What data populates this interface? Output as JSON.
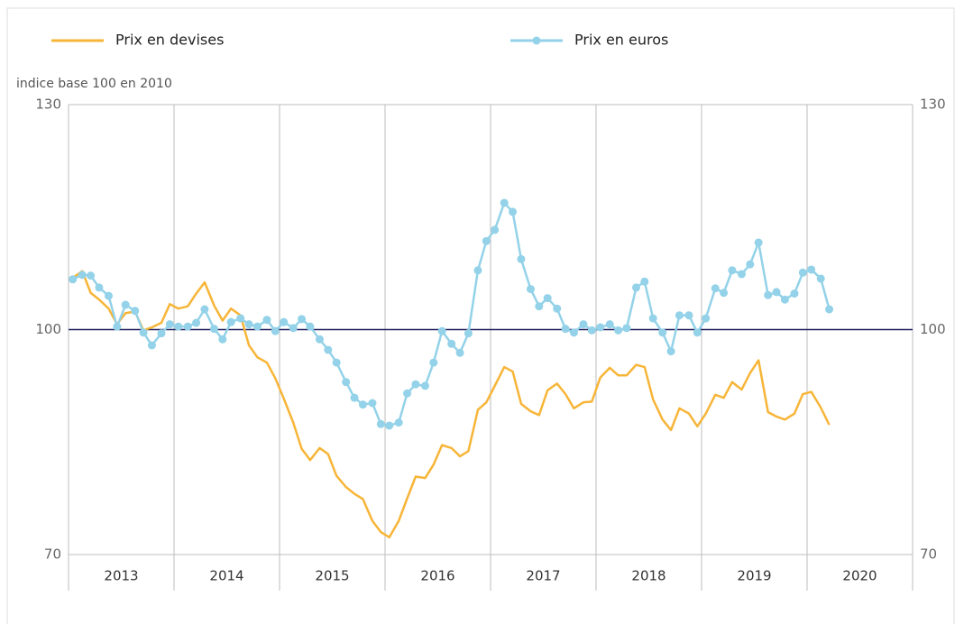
{
  "chart_data": {
    "type": "line",
    "ylabel": "indice base 100 en 2010",
    "categories": [
      "2013",
      "2014",
      "2015",
      "2016",
      "2017",
      "2018",
      "2019",
      "2020"
    ],
    "x": [
      2013.04,
      2013.13,
      2013.21,
      2013.29,
      2013.38,
      2013.46,
      2013.54,
      2013.63,
      2013.71,
      2013.79,
      2013.88,
      2013.96,
      2014.04,
      2014.13,
      2014.21,
      2014.29,
      2014.38,
      2014.46,
      2014.54,
      2014.63,
      2014.71,
      2014.79,
      2014.88,
      2014.96,
      2015.04,
      2015.13,
      2015.21,
      2015.29,
      2015.38,
      2015.46,
      2015.54,
      2015.63,
      2015.71,
      2015.79,
      2015.88,
      2015.96,
      2016.04,
      2016.13,
      2016.21,
      2016.29,
      2016.38,
      2016.46,
      2016.54,
      2016.63,
      2016.71,
      2016.79,
      2016.88,
      2016.96,
      2017.04,
      2017.13,
      2017.21,
      2017.29,
      2017.38,
      2017.46,
      2017.54,
      2017.63,
      2017.71,
      2017.79,
      2017.88,
      2017.96,
      2018.04,
      2018.13,
      2018.21,
      2018.29,
      2018.38,
      2018.46,
      2018.54,
      2018.63,
      2018.71,
      2018.79,
      2018.88,
      2018.96,
      2019.04,
      2019.13,
      2019.21,
      2019.29,
      2019.38,
      2019.46,
      2019.54,
      2019.63,
      2019.71,
      2019.79,
      2019.88,
      2019.96,
      2020.04,
      2020.13,
      2020.21
    ],
    "xlim": [
      2013,
      2021
    ],
    "series": [
      {
        "name": "Prix en devises",
        "color": "#f7b538",
        "marker": false,
        "values": [
          106.9,
          107.8,
          104.9,
          104.0,
          102.8,
          100.7,
          102.2,
          102.4,
          99.9,
          100.3,
          100.9,
          103.4,
          102.8,
          103.1,
          104.8,
          106.3,
          103.2,
          101.2,
          102.8,
          101.9,
          97.9,
          96.3,
          95.6,
          93.5,
          90.8,
          87.6,
          84.1,
          82.6,
          84.2,
          83.4,
          80.5,
          79.0,
          78.1,
          77.4,
          74.5,
          73.0,
          72.3,
          74.5,
          77.5,
          80.4,
          80.2,
          82.0,
          84.6,
          84.2,
          83.1,
          83.8,
          89.3,
          90.3,
          92.5,
          95.0,
          94.4,
          90.1,
          89.1,
          88.6,
          91.9,
          92.8,
          91.4,
          89.5,
          90.3,
          90.4,
          93.6,
          94.9,
          93.9,
          93.9,
          95.3,
          95.0,
          90.7,
          88.0,
          86.6,
          89.5,
          88.8,
          87.1,
          88.8,
          91.3,
          90.9,
          93.0,
          92.0,
          94.2,
          95.9,
          89.0,
          88.4,
          88.0,
          88.8,
          91.4,
          91.7,
          89.6,
          87.3
        ]
      },
      {
        "name": "Prix en euros",
        "color": "#93d2e8",
        "marker": true,
        "values": [
          106.7,
          107.3,
          107.2,
          105.6,
          104.5,
          100.4,
          103.3,
          102.5,
          99.6,
          97.9,
          99.5,
          100.7,
          100.4,
          100.4,
          100.9,
          102.7,
          100.1,
          98.7,
          101.0,
          101.5,
          100.7,
          100.4,
          101.3,
          99.8,
          101.0,
          100.2,
          101.4,
          100.4,
          98.7,
          97.3,
          95.6,
          93.0,
          90.9,
          90.0,
          90.2,
          87.4,
          87.2,
          87.6,
          91.5,
          92.7,
          92.5,
          95.6,
          99.8,
          98.1,
          96.9,
          99.5,
          107.9,
          111.8,
          113.3,
          116.9,
          115.7,
          109.4,
          105.4,
          103.1,
          104.2,
          102.8,
          100.1,
          99.6,
          100.7,
          99.9,
          100.3,
          100.7,
          99.9,
          100.2,
          105.6,
          106.4,
          101.5,
          99.6,
          97.1,
          101.9,
          101.9,
          99.6,
          101.5,
          105.5,
          104.9,
          107.9,
          107.4,
          108.7,
          111.6,
          104.6,
          105.0,
          104.0,
          104.8,
          107.6,
          108.0,
          106.8,
          102.7
        ]
      }
    ],
    "ylim": [
      70,
      130
    ],
    "yticks": [
      70,
      100,
      130
    ],
    "y2lim": [
      70,
      130
    ],
    "y2ticks": [
      70,
      100,
      130
    ],
    "reference_line": 100,
    "legend": "top"
  }
}
